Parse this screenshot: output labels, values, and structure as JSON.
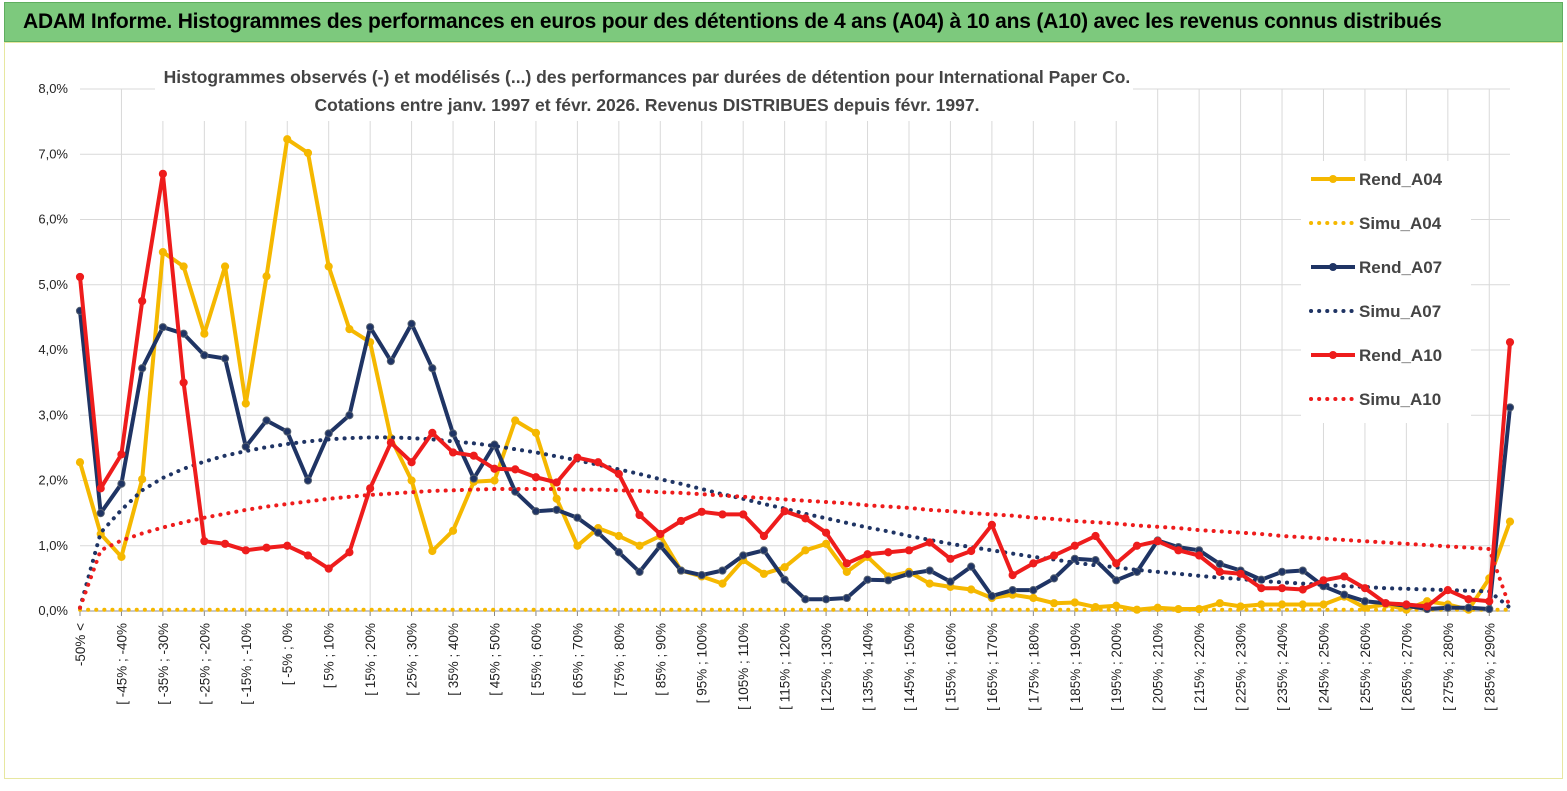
{
  "banner_title": "ADAM Informe. Histogrammes des performances en euros pour des détentions de 4 ans (A04) à 10 ans (A10) avec les revenus connus distribués",
  "chart_data": {
    "type": "line",
    "title_lines": [
      "Histogrammes observés (-)  et modélisés (...) des performances par durées de détention pour International Paper Co.",
      "Cotations entre janv. 1997 et févr. 2026. Revenus DISTRIBUES depuis févr. 1997."
    ],
    "ylim": [
      0,
      8
    ],
    "yticks": [
      "0,0%",
      "1,0%",
      "2,0%",
      "3,0%",
      "4,0%",
      "5,0%",
      "6,0%",
      "7,0%",
      "8,0%"
    ],
    "tick_labels": [
      "-50% <",
      "[ -45% ; -40%",
      "[ -35% ; -30%",
      "[ -25% ; -20%",
      "[ -15% ; -10%",
      "[ -5% ; 0%",
      "[ 5% ; 10%",
      "[ 15% ; 20%",
      "[ 25% ; 30%",
      "[ 35% ; 40%",
      "[ 45% ; 50%",
      "[ 55% ; 60%",
      "[ 65% ; 70%",
      "[ 75% ; 80%",
      "[ 85% ; 90%",
      "[ 95% ; 100%",
      "[ 105% ; 110%",
      "[ 115% ; 120%",
      "[ 125% ; 130%",
      "[ 135% ; 140%",
      "[ 145% ; 150%",
      "[ 155% ; 160%",
      "[ 165% ; 170%",
      "[ 175% ; 180%",
      "[ 185% ; 190%",
      "[ 195% ; 200%",
      "[ 205% ; 210%",
      "[ 215% ; 220%",
      "[ 225% ; 230%",
      "[ 235% ; 240%",
      "[ 245% ; 250%",
      "[ 255% ; 260%",
      "[ 265% ; 270%",
      "[ 275% ; 280%",
      "[ 285% ; 290%"
    ],
    "n_points": 70,
    "series": [
      {
        "name": "Rend_A04",
        "color": "#f5b800",
        "style": "solid",
        "markers": true,
        "values": [
          2.28,
          1.18,
          0.83,
          2.02,
          5.5,
          5.28,
          4.25,
          5.28,
          3.18,
          5.13,
          7.23,
          7.02,
          5.28,
          4.32,
          4.12,
          2.65,
          2.0,
          0.92,
          1.23,
          1.98,
          2.0,
          2.92,
          2.73,
          1.72,
          1.0,
          1.27,
          1.15,
          1.0,
          1.15,
          0.62,
          0.53,
          0.42,
          0.78,
          0.57,
          0.67,
          0.93,
          1.03,
          0.6,
          0.83,
          0.53,
          0.6,
          0.42,
          0.37,
          0.33,
          0.2,
          0.25,
          0.2,
          0.12,
          0.13,
          0.06,
          0.08,
          0.02,
          0.05,
          0.03,
          0.03,
          0.12,
          0.07,
          0.1,
          0.1,
          0.1,
          0.1,
          0.22,
          0.05,
          0.1,
          0.02,
          0.15,
          0.1,
          0.02,
          0.5,
          1.37
        ]
      },
      {
        "name": "Simu_A04",
        "color": "#f5b800",
        "style": "dotted",
        "markers": false,
        "values": [
          0.02,
          0.02,
          0.02,
          0.02,
          0.02,
          0.02,
          0.02,
          0.02,
          0.02,
          0.02,
          0.02,
          0.02,
          0.02,
          0.02,
          0.02,
          0.02,
          0.02,
          0.02,
          0.02,
          0.02,
          0.02,
          0.02,
          0.02,
          0.02,
          0.02,
          0.02,
          0.02,
          0.02,
          0.02,
          0.02,
          0.02,
          0.02,
          0.02,
          0.02,
          0.02,
          0.02,
          0.02,
          0.02,
          0.02,
          0.02,
          0.02,
          0.02,
          0.02,
          0.02,
          0.02,
          0.02,
          0.02,
          0.02,
          0.02,
          0.02,
          0.02,
          0.02,
          0.02,
          0.02,
          0.02,
          0.02,
          0.02,
          0.02,
          0.02,
          0.02,
          0.02,
          0.02,
          0.02,
          0.02,
          0.02,
          0.02,
          0.02,
          0.02,
          0.02,
          0.02
        ]
      },
      {
        "name": "Rend_A07",
        "color": "#1f3464",
        "style": "solid",
        "markers": true,
        "values": [
          4.6,
          1.5,
          1.95,
          3.72,
          4.35,
          4.25,
          3.92,
          3.87,
          2.52,
          2.92,
          2.75,
          2.0,
          2.72,
          3.0,
          4.35,
          3.83,
          4.4,
          3.72,
          2.72,
          2.03,
          2.55,
          1.83,
          1.53,
          1.55,
          1.43,
          1.2,
          0.9,
          0.6,
          1.0,
          0.62,
          0.55,
          0.62,
          0.85,
          0.93,
          0.48,
          0.18,
          0.18,
          0.2,
          0.48,
          0.47,
          0.57,
          0.62,
          0.45,
          0.68,
          0.23,
          0.32,
          0.32,
          0.5,
          0.8,
          0.78,
          0.47,
          0.6,
          1.08,
          0.98,
          0.93,
          0.72,
          0.62,
          0.48,
          0.6,
          0.62,
          0.38,
          0.25,
          0.15,
          0.12,
          0.08,
          0.03,
          0.05,
          0.05,
          0.03,
          3.12
        ]
      },
      {
        "name": "Simu_A07",
        "color": "#1f3464",
        "style": "dotted",
        "markers": false,
        "values": [
          0.05,
          1.2,
          1.55,
          1.85,
          2.04,
          2.18,
          2.29,
          2.38,
          2.45,
          2.51,
          2.56,
          2.6,
          2.63,
          2.65,
          2.66,
          2.66,
          2.65,
          2.63,
          2.6,
          2.57,
          2.53,
          2.48,
          2.43,
          2.37,
          2.31,
          2.24,
          2.17,
          2.1,
          2.02,
          1.95,
          1.87,
          1.79,
          1.72,
          1.64,
          1.57,
          1.49,
          1.42,
          1.35,
          1.28,
          1.22,
          1.15,
          1.09,
          1.03,
          0.98,
          0.93,
          0.88,
          0.83,
          0.79,
          0.74,
          0.7,
          0.67,
          0.63,
          0.6,
          0.57,
          0.54,
          0.51,
          0.49,
          0.46,
          0.44,
          0.42,
          0.4,
          0.38,
          0.37,
          0.35,
          0.34,
          0.33,
          0.32,
          0.31,
          0.3,
          0.05
        ]
      },
      {
        "name": "Rend_A10",
        "color": "#ee1c1c",
        "style": "solid",
        "markers": true,
        "values": [
          5.12,
          1.88,
          2.4,
          4.75,
          6.7,
          3.5,
          1.07,
          1.03,
          0.93,
          0.97,
          1.0,
          0.85,
          0.65,
          0.9,
          1.88,
          2.58,
          2.28,
          2.73,
          2.43,
          2.38,
          2.18,
          2.17,
          2.05,
          1.97,
          2.35,
          2.28,
          2.1,
          1.47,
          1.18,
          1.38,
          1.52,
          1.48,
          1.48,
          1.15,
          1.53,
          1.42,
          1.2,
          0.73,
          0.87,
          0.9,
          0.93,
          1.05,
          0.8,
          0.92,
          1.32,
          0.55,
          0.73,
          0.85,
          1.0,
          1.15,
          0.73,
          1.0,
          1.07,
          0.93,
          0.85,
          0.6,
          0.57,
          0.35,
          0.35,
          0.33,
          0.47,
          0.53,
          0.35,
          0.12,
          0.1,
          0.07,
          0.32,
          0.18,
          0.15,
          4.12
        ]
      },
      {
        "name": "Simu_A10",
        "color": "#ee1c1c",
        "style": "dotted",
        "markers": false,
        "values": [
          0.05,
          0.93,
          1.08,
          1.19,
          1.28,
          1.36,
          1.43,
          1.49,
          1.55,
          1.6,
          1.64,
          1.68,
          1.72,
          1.75,
          1.78,
          1.8,
          1.82,
          1.84,
          1.85,
          1.86,
          1.87,
          1.87,
          1.87,
          1.87,
          1.86,
          1.86,
          1.85,
          1.84,
          1.82,
          1.81,
          1.79,
          1.77,
          1.75,
          1.73,
          1.71,
          1.69,
          1.67,
          1.65,
          1.62,
          1.6,
          1.58,
          1.55,
          1.53,
          1.5,
          1.48,
          1.46,
          1.43,
          1.41,
          1.38,
          1.36,
          1.34,
          1.31,
          1.29,
          1.27,
          1.24,
          1.22,
          1.2,
          1.18,
          1.15,
          1.13,
          1.11,
          1.09,
          1.07,
          1.05,
          1.03,
          1.01,
          0.99,
          0.97,
          0.95,
          0.05
        ]
      }
    ]
  }
}
